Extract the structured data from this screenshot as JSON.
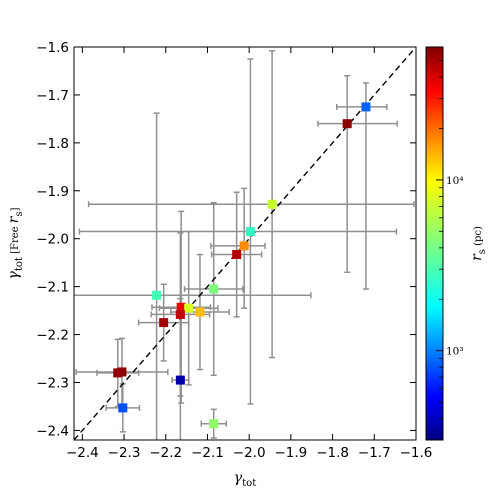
{
  "chart_data": {
    "type": "scatter",
    "title": "",
    "xlabel": "γtot",
    "ylabel": "γtot [Free rs]",
    "xlim": [
      -2.42,
      -1.6
    ],
    "ylim": [
      -2.42,
      -1.6
    ],
    "x_ticks": [
      -2.4,
      -2.3,
      -2.2,
      -2.1,
      -2.0,
      -1.9,
      -1.8,
      -1.7,
      -1.6
    ],
    "x_tick_labels": [
      "−2.4",
      "−2.3",
      "−2.2",
      "−2.1",
      "−2.0",
      "−1.9",
      "−1.8",
      "−1.7",
      "−1.6"
    ],
    "y_ticks": [
      -2.4,
      -2.3,
      -2.2,
      -2.1,
      -2.0,
      -1.9,
      -1.8,
      -1.7,
      -1.6
    ],
    "y_tick_labels": [
      "−2.4",
      "−2.3",
      "−2.2",
      "−2.1",
      "−2.0",
      "−1.9",
      "−1.8",
      "−1.7",
      "−1.6"
    ],
    "grid": false,
    "reference_line": {
      "type": "one-to-one",
      "style": "dashed",
      "color": "#000000"
    },
    "colorbar": {
      "label": "rs (pc)",
      "scale": "log",
      "colormap": "jet",
      "range": [
        300,
        60000
      ],
      "ticks": [
        1000,
        10000
      ],
      "tick_labels": [
        "10³",
        "10⁴"
      ]
    },
    "error_bar_color": "#909090",
    "points": [
      {
        "x": -1.765,
        "y": -1.76,
        "xerr": [
          0.07,
          0.12
        ],
        "yerr": [
          0.31,
          0.1
        ],
        "rs": 50000,
        "color": "#8b0000"
      },
      {
        "x": -1.72,
        "y": -1.725,
        "xerr": [
          0.07,
          0.05
        ],
        "yerr": [
          0.38,
          0.05
        ],
        "rs": 800,
        "color": "#0063ff"
      },
      {
        "x": -1.945,
        "y": -1.928,
        "xerr": [
          0.44,
          0.34
        ],
        "yerr": [
          0.32,
          0.32
        ],
        "rs": 20000,
        "color": "#c6ff30"
      },
      {
        "x": -1.997,
        "y": -1.985,
        "xerr": [
          0.41,
          0.35
        ],
        "yerr": [
          0.36,
          0.36
        ],
        "rs": 3500,
        "color": "#30ffc6"
      },
      {
        "x": -2.012,
        "y": -2.015,
        "xerr": [
          0.08,
          0.05
        ],
        "yerr": [
          0.13,
          0.12
        ],
        "rs": 13000,
        "color": "#ff8c00"
      },
      {
        "x": -2.03,
        "y": -2.033,
        "xerr": [
          0.06,
          0.06
        ],
        "yerr": [
          0.13,
          0.13
        ],
        "rs": 40000,
        "color": "#b50000"
      },
      {
        "x": -2.222,
        "y": -2.118,
        "xerr": [
          0.2,
          0.37
        ],
        "yerr": [
          0.38,
          0.38
        ],
        "rs": 3000,
        "color": "#40ffb7"
      },
      {
        "x": -2.085,
        "y": -2.105,
        "xerr": [
          0.07,
          0.07
        ],
        "yerr": [
          0.18,
          0.18
        ],
        "rs": 8000,
        "color": "#7cff7a"
      },
      {
        "x": -2.163,
        "y": -2.143,
        "xerr": [
          0.07,
          0.07
        ],
        "yerr": [
          0.2,
          0.2
        ],
        "rs": 30000,
        "color": "#f00000"
      },
      {
        "x": -2.145,
        "y": -2.145,
        "xerr": [
          0.07,
          0.07
        ],
        "yerr": [
          0.16,
          0.16
        ],
        "rs": 9000,
        "color": "#d8ff1f"
      },
      {
        "x": -2.118,
        "y": -2.153,
        "xerr": [
          0.07,
          0.07
        ],
        "yerr": [
          0.12,
          0.12
        ],
        "rs": 14000,
        "color": "#ffbf00"
      },
      {
        "x": -2.165,
        "y": -2.158,
        "xerr": [
          0.07,
          0.07
        ],
        "yerr": [
          0.17,
          0.17
        ],
        "rs": 35000,
        "color": "#c10000"
      },
      {
        "x": -2.205,
        "y": -2.175,
        "xerr": [
          0.06,
          0.06
        ],
        "yerr": [
          0.08,
          0.08
        ],
        "rs": 45000,
        "color": "#a00000"
      },
      {
        "x": -2.305,
        "y": -2.278,
        "xerr": [
          0.11,
          0.11
        ],
        "yerr": [
          0.07,
          0.07
        ],
        "rs": 55000,
        "color": "#8b0000"
      },
      {
        "x": -2.315,
        "y": -2.28,
        "xerr": [
          0.05,
          0.05
        ],
        "yerr": [
          0.07,
          0.07
        ],
        "rs": 50000,
        "color": "#900000"
      },
      {
        "x": -2.165,
        "y": -2.295,
        "xerr": [
          0.02,
          0.02
        ],
        "yerr": [
          0.17,
          0.17
        ],
        "rs": 350,
        "color": "#0000a8"
      },
      {
        "x": -2.303,
        "y": -2.353,
        "xerr": [
          0.04,
          0.04
        ],
        "yerr": [
          0.05,
          0.05
        ],
        "rs": 700,
        "color": "#0050ff"
      },
      {
        "x": -2.085,
        "y": -2.386,
        "xerr": [
          0.03,
          0.03
        ],
        "yerr": [
          0.03,
          0.03
        ],
        "rs": 7000,
        "color": "#8fff68"
      }
    ]
  }
}
